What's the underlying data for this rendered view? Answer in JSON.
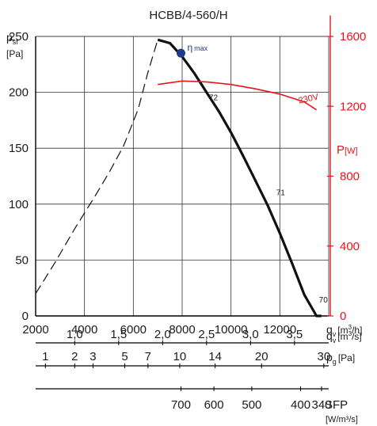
{
  "chart_data": {
    "type": "line",
    "title": "HCBB/4-560/H",
    "grid": true,
    "xlim": [
      2000,
      14000
    ],
    "ylim": [
      0,
      250
    ],
    "y2lim": [
      0,
      1600
    ],
    "x_ticks": [
      "2000",
      "4000",
      "6000",
      "8000",
      "10000",
      "12000"
    ],
    "y_ticks": [
      "0",
      "50",
      "100",
      "150",
      "200",
      "250"
    ],
    "y2_ticks": [
      "0",
      "400",
      "800",
      "1200",
      "1600"
    ],
    "y_label": {
      "main": "p",
      "sub": "sf",
      "unit": "[Pa]"
    },
    "y2_label": {
      "main": "P",
      "unit": "[W]"
    },
    "x_label": {
      "main": "q",
      "sub": "v",
      "unit": "[m",
      "sup": "3",
      "tail": "/h]"
    },
    "colors": {
      "pressure": "#111111",
      "power": "#e8141c",
      "eta_point": "#1f3a93",
      "power_axis": "#e8141c"
    },
    "series": [
      {
        "role": "pressure-stall",
        "style": "dashed",
        "x": [
          2000,
          2800,
          3600,
          4400,
          5000,
          5600,
          6200,
          6600,
          7000
        ],
        "y": [
          20,
          48,
          78,
          106,
          128,
          152,
          185,
          218,
          247
        ]
      },
      {
        "role": "pressure",
        "x": [
          7000,
          7500,
          8000,
          8500,
          9000,
          9500,
          10000,
          10500,
          11000,
          11500,
          12000,
          12500,
          13000,
          13500,
          13700
        ],
        "y": [
          247,
          244,
          232,
          217,
          200,
          183,
          164,
          143,
          121,
          99,
          74,
          47,
          19,
          0,
          0
        ]
      },
      {
        "role": "power",
        "name": "230V",
        "axis": "y2",
        "x": [
          7000,
          8000,
          9000,
          10000,
          11000,
          12000,
          13000,
          13500
        ],
        "y": [
          1325,
          1345,
          1340,
          1325,
          1300,
          1270,
          1225,
          1180
        ]
      }
    ],
    "eta_max": {
      "x": 7950,
      "y": 235,
      "label": "η",
      "sublabel": "max"
    },
    "efficiency_labels": [
      {
        "text": "72",
        "x": 9100,
        "y": 193
      },
      {
        "text": "71",
        "x": 11850,
        "y": 108
      },
      {
        "text": "70",
        "x": 13600,
        "y": 12
      }
    ],
    "m3s_axis": {
      "label": {
        "main": "q",
        "sub": "v",
        "unit": "[m",
        "sup": "3",
        "tail": "/s]"
      },
      "ticks": [
        {
          "label": "1,0",
          "value": 1.0
        },
        {
          "label": "1,5",
          "value": 1.5
        },
        {
          "label": "2,0",
          "value": 2.0
        },
        {
          "label": "2,5",
          "value": 2.5
        },
        {
          "label": "3,0",
          "value": 3.0
        },
        {
          "label": "3,5",
          "value": 3.5
        }
      ]
    },
    "pg_axis": {
      "label": {
        "main": "p",
        "sub": "g",
        "unit": "[Pa]"
      },
      "ticks": [
        {
          "label": "1",
          "q": 2400
        },
        {
          "label": "2",
          "q": 3600
        },
        {
          "label": "3",
          "q": 4350
        },
        {
          "label": "5",
          "q": 5650
        },
        {
          "label": "7",
          "q": 6600
        },
        {
          "label": "10",
          "q": 7900
        },
        {
          "label": "14",
          "q": 9350
        },
        {
          "label": "20",
          "q": 11250
        },
        {
          "label": "30",
          "q": 13800
        }
      ]
    },
    "sfp_axis": {
      "label": "SFP",
      "unit": "[W/m³/s]",
      "ticks": [
        {
          "label": "700",
          "q": 7950
        },
        {
          "label": "600",
          "q": 9300
        },
        {
          "label": "500",
          "q": 10850
        },
        {
          "label": "400",
          "q": 12850
        },
        {
          "label": "340",
          "q": 14150
        }
      ]
    }
  }
}
